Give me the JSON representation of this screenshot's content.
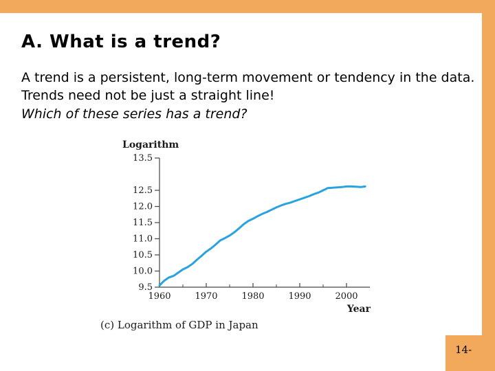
{
  "colors": {
    "accent": "#F3A95B",
    "line": "#29A3E0",
    "axis": "#444444"
  },
  "slide": {
    "title": "A.  What is a trend?",
    "body": "A trend is a persistent, long-term movement or tendency in the data.  Trends need not be just a straight line!",
    "question": "Which of these series has a trend?",
    "page_number": "14-"
  },
  "chart_data": {
    "type": "line",
    "title": "",
    "caption": "(c)  Logarithm of GDP in Japan",
    "ylabel": "Logarithm",
    "xlabel": "Year",
    "ylim": [
      9.5,
      13.5
    ],
    "xlim": [
      1960,
      2005
    ],
    "yticks": [
      9.5,
      10.0,
      10.5,
      11.0,
      11.5,
      12.0,
      12.5,
      13.5
    ],
    "ytick_labels": [
      "9.5",
      "10.0",
      "10.5",
      "11.0",
      "11.5",
      "12.0",
      "12.5",
      "13.5"
    ],
    "xticks": [
      1960,
      1970,
      1980,
      1990,
      2000
    ],
    "xtick_labels": [
      "1960",
      "1970",
      "1980",
      "1990",
      "2000"
    ],
    "grid": false,
    "series": [
      {
        "x": [
          1960,
          1961,
          1962,
          1963,
          1964,
          1965,
          1966,
          1967,
          1968,
          1969,
          1970,
          1971,
          1972,
          1973,
          1974,
          1975,
          1976,
          1977,
          1978,
          1979,
          1980,
          1981,
          1982,
          1983,
          1984,
          1985,
          1986,
          1987,
          1988,
          1989,
          1990,
          1991,
          1992,
          1993,
          1994,
          1995,
          1996,
          1997,
          1998,
          1999,
          2000,
          2001,
          2002,
          2003,
          2004
        ],
        "values": [
          9.55,
          9.7,
          9.8,
          9.85,
          9.95,
          10.05,
          10.12,
          10.22,
          10.35,
          10.47,
          10.6,
          10.7,
          10.82,
          10.95,
          11.02,
          11.1,
          11.2,
          11.32,
          11.45,
          11.55,
          11.62,
          11.7,
          11.77,
          11.83,
          11.9,
          11.97,
          12.03,
          12.08,
          12.12,
          12.17,
          12.22,
          12.27,
          12.32,
          12.38,
          12.43,
          12.5,
          12.57,
          12.58,
          12.59,
          12.6,
          12.62,
          12.62,
          12.61,
          12.6,
          12.62
        ]
      }
    ]
  }
}
